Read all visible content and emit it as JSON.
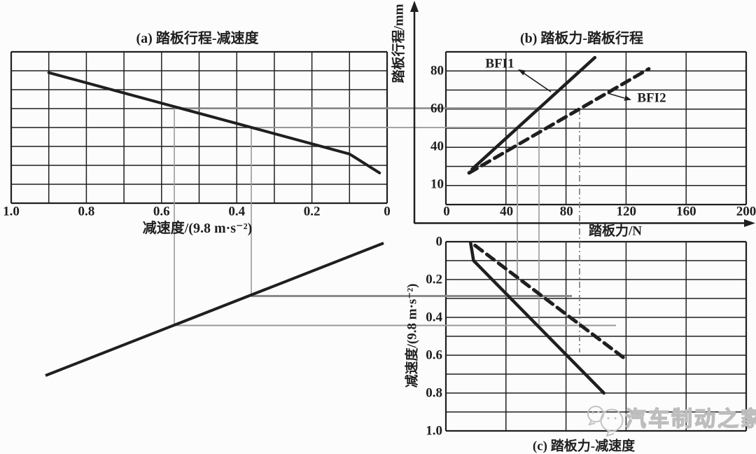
{
  "charts": {
    "a": {
      "title": "(a) 踏板行程-减速度",
      "xlabel": "减速度/(9.8 m·s⁻²)",
      "xticks": [
        "1.0",
        "0.8",
        "0.6",
        "0.4",
        "0.2",
        "0"
      ]
    },
    "b": {
      "title": "(b) 踏板力-踏板行程",
      "xlabel": "踏板力/N",
      "ylabel": "踏板行程/mm",
      "xticks": [
        "0",
        "40",
        "80",
        "120",
        "160",
        "200"
      ],
      "yticks": [
        "80",
        "60",
        "40",
        "10"
      ],
      "labels": {
        "bfi1": "BFI1",
        "bfi2": "BFI2"
      }
    },
    "c": {
      "caption": "(c) 踏板力-减速度",
      "ylabel": "减速度/(9.8 m·s⁻²)",
      "yticks": [
        "0",
        "0.2",
        "0.4",
        "0.6",
        "0.8",
        "1.0"
      ]
    }
  },
  "watermark": {
    "text": "汽车制动之家",
    "logo": "speech-bubbles-logo"
  },
  "colors": {
    "ink": "#1f1f1f",
    "construction": "#8a8a8a",
    "construction_light": "#9a9a9a",
    "dashdot": "#787878",
    "watermark": "#c2c2c2",
    "background": "#fcfcfc"
  },
  "chart_data": [
    {
      "id": "a",
      "type": "line",
      "title": "(a) 踏板行程-减速度",
      "xlabel": "减速度/(9.8 m·s⁻²)",
      "x_axis": {
        "ticks": [
          1.0,
          0.8,
          0.6,
          0.4,
          0.2,
          0
        ],
        "range": [
          1.0,
          0
        ],
        "reversed": true
      },
      "y_axis": {
        "label": "",
        "shared_with": "chart b pedal-travel axis (mm)"
      },
      "grid": true,
      "series": [
        {
          "name": "pedal-travel-vs-deceleration",
          "style": "solid",
          "points": [
            [
              0.9,
              79
            ],
            [
              0.1,
              36
            ],
            [
              0.02,
              26
            ]
          ]
        }
      ]
    },
    {
      "id": "b",
      "type": "line",
      "title": "(b) 踏板力-踏板行程",
      "xlabel": "踏板力/N",
      "ylabel": "踏板行程/mm",
      "x_axis": {
        "ticks": [
          0,
          40,
          80,
          120,
          160,
          200
        ],
        "range": [
          0,
          200
        ]
      },
      "y_axis": {
        "ticks": [
          10,
          40,
          60,
          80
        ]
      },
      "grid": true,
      "series": [
        {
          "name": "BFI1",
          "style": "solid",
          "points": [
            [
              17,
              28
            ],
            [
              99,
              87
            ]
          ]
        },
        {
          "name": "BFI2",
          "style": "dashed",
          "points": [
            [
              15,
              26
            ],
            [
              135,
              81
            ]
          ]
        }
      ],
      "reference_lines": [
        {
          "type": "vertical-dashdot",
          "x": 90,
          "note": "drops from BFI2 at 60 mm into chart c"
        }
      ]
    },
    {
      "id": "c",
      "type": "line",
      "caption": "(c) 踏板力-减速度",
      "ylabel": "减速度/(9.8 m·s⁻²)",
      "x_axis": {
        "shared_with": "b",
        "range": [
          0,
          200
        ]
      },
      "y_axis": {
        "ticks": [
          0,
          0.2,
          0.4,
          0.6,
          0.8,
          1.0
        ],
        "inverted": true
      },
      "grid": true,
      "series": [
        {
          "name": "BFI1",
          "style": "solid",
          "points": [
            [
              16,
              0.005
            ],
            [
              18,
              0.1
            ],
            [
              105,
              0.8
            ]
          ]
        },
        {
          "name": "BFI2",
          "style": "dashed",
          "points": [
            [
              19,
              0.02
            ],
            [
              118.5,
              0.615
            ]
          ]
        }
      ]
    }
  ],
  "construction": {
    "pedal_travel_levels_mm": [
      60,
      50
    ],
    "deceleration_levels": [
      0.3,
      0.45
    ],
    "transfer_line": "diagonal line in lower-left quadrant linking chart a deceleration to chart c deceleration"
  }
}
